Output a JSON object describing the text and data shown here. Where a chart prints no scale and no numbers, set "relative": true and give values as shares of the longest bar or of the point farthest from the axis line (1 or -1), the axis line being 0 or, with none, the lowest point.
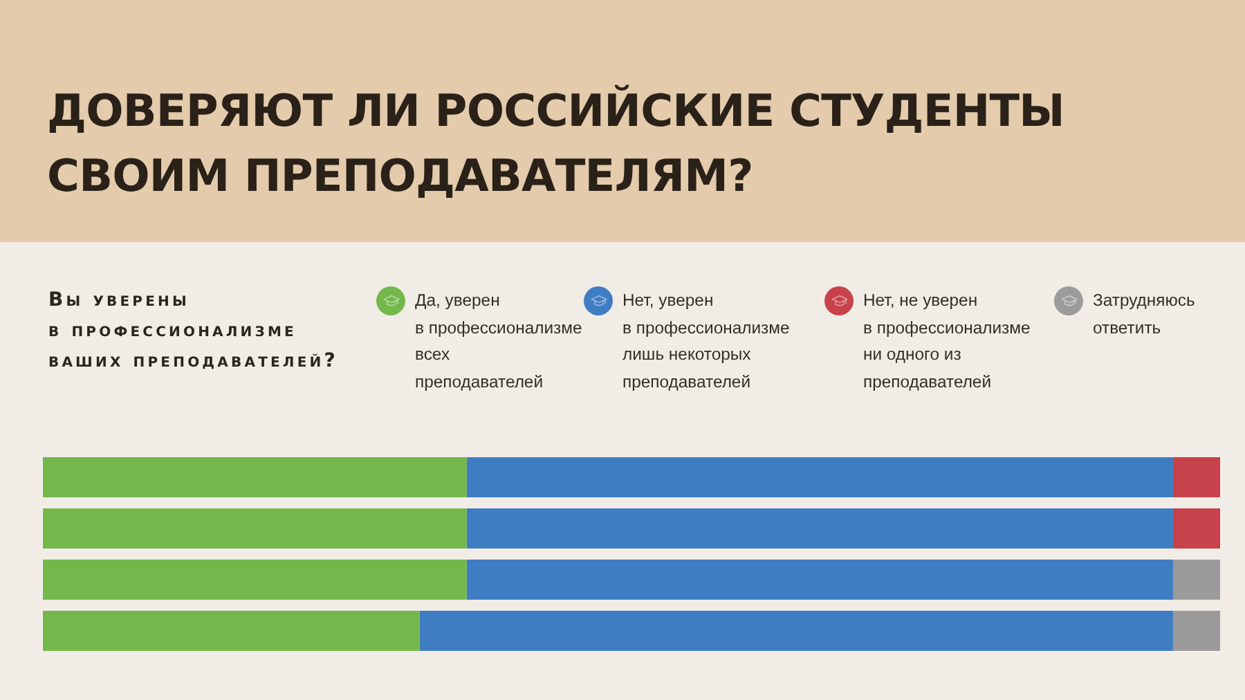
{
  "chart_data": {
    "type": "bar",
    "title": "ДОВЕРЯЮТ ЛИ РОССИЙСКИЕ СТУДЕНТЫ СВОИМ ПРЕПОДАВАТЕЛЯМ?",
    "subtitle": "Вы уверены в профессионализме ваших преподавателей?",
    "orientation": "horizontal",
    "stacked": true,
    "relative": true,
    "categories": [
      null,
      null,
      null,
      null
    ],
    "series": [
      {
        "name": "Да, уверен в профессионализме всех преподавателей",
        "color": "#74b84c",
        "values": [
          0.36,
          0.36,
          0.36,
          0.32
        ]
      },
      {
        "name": "Нет, уверен в профессионализме лишь некоторых преподавателей",
        "color": "#3f7dc3",
        "values": [
          0.6,
          0.6,
          0.6,
          0.64
        ]
      },
      {
        "name": "Нет, не уверен в профессионализме ни одного из преподавателей",
        "color": "#c7424b",
        "values": [
          0.04,
          0.04,
          0,
          0
        ]
      },
      {
        "name": "Затрудняюсь ответить",
        "color": "#9b9b9b",
        "values": [
          0,
          0,
          0.04,
          0.04
        ]
      }
    ],
    "legend": "top"
  }
}
